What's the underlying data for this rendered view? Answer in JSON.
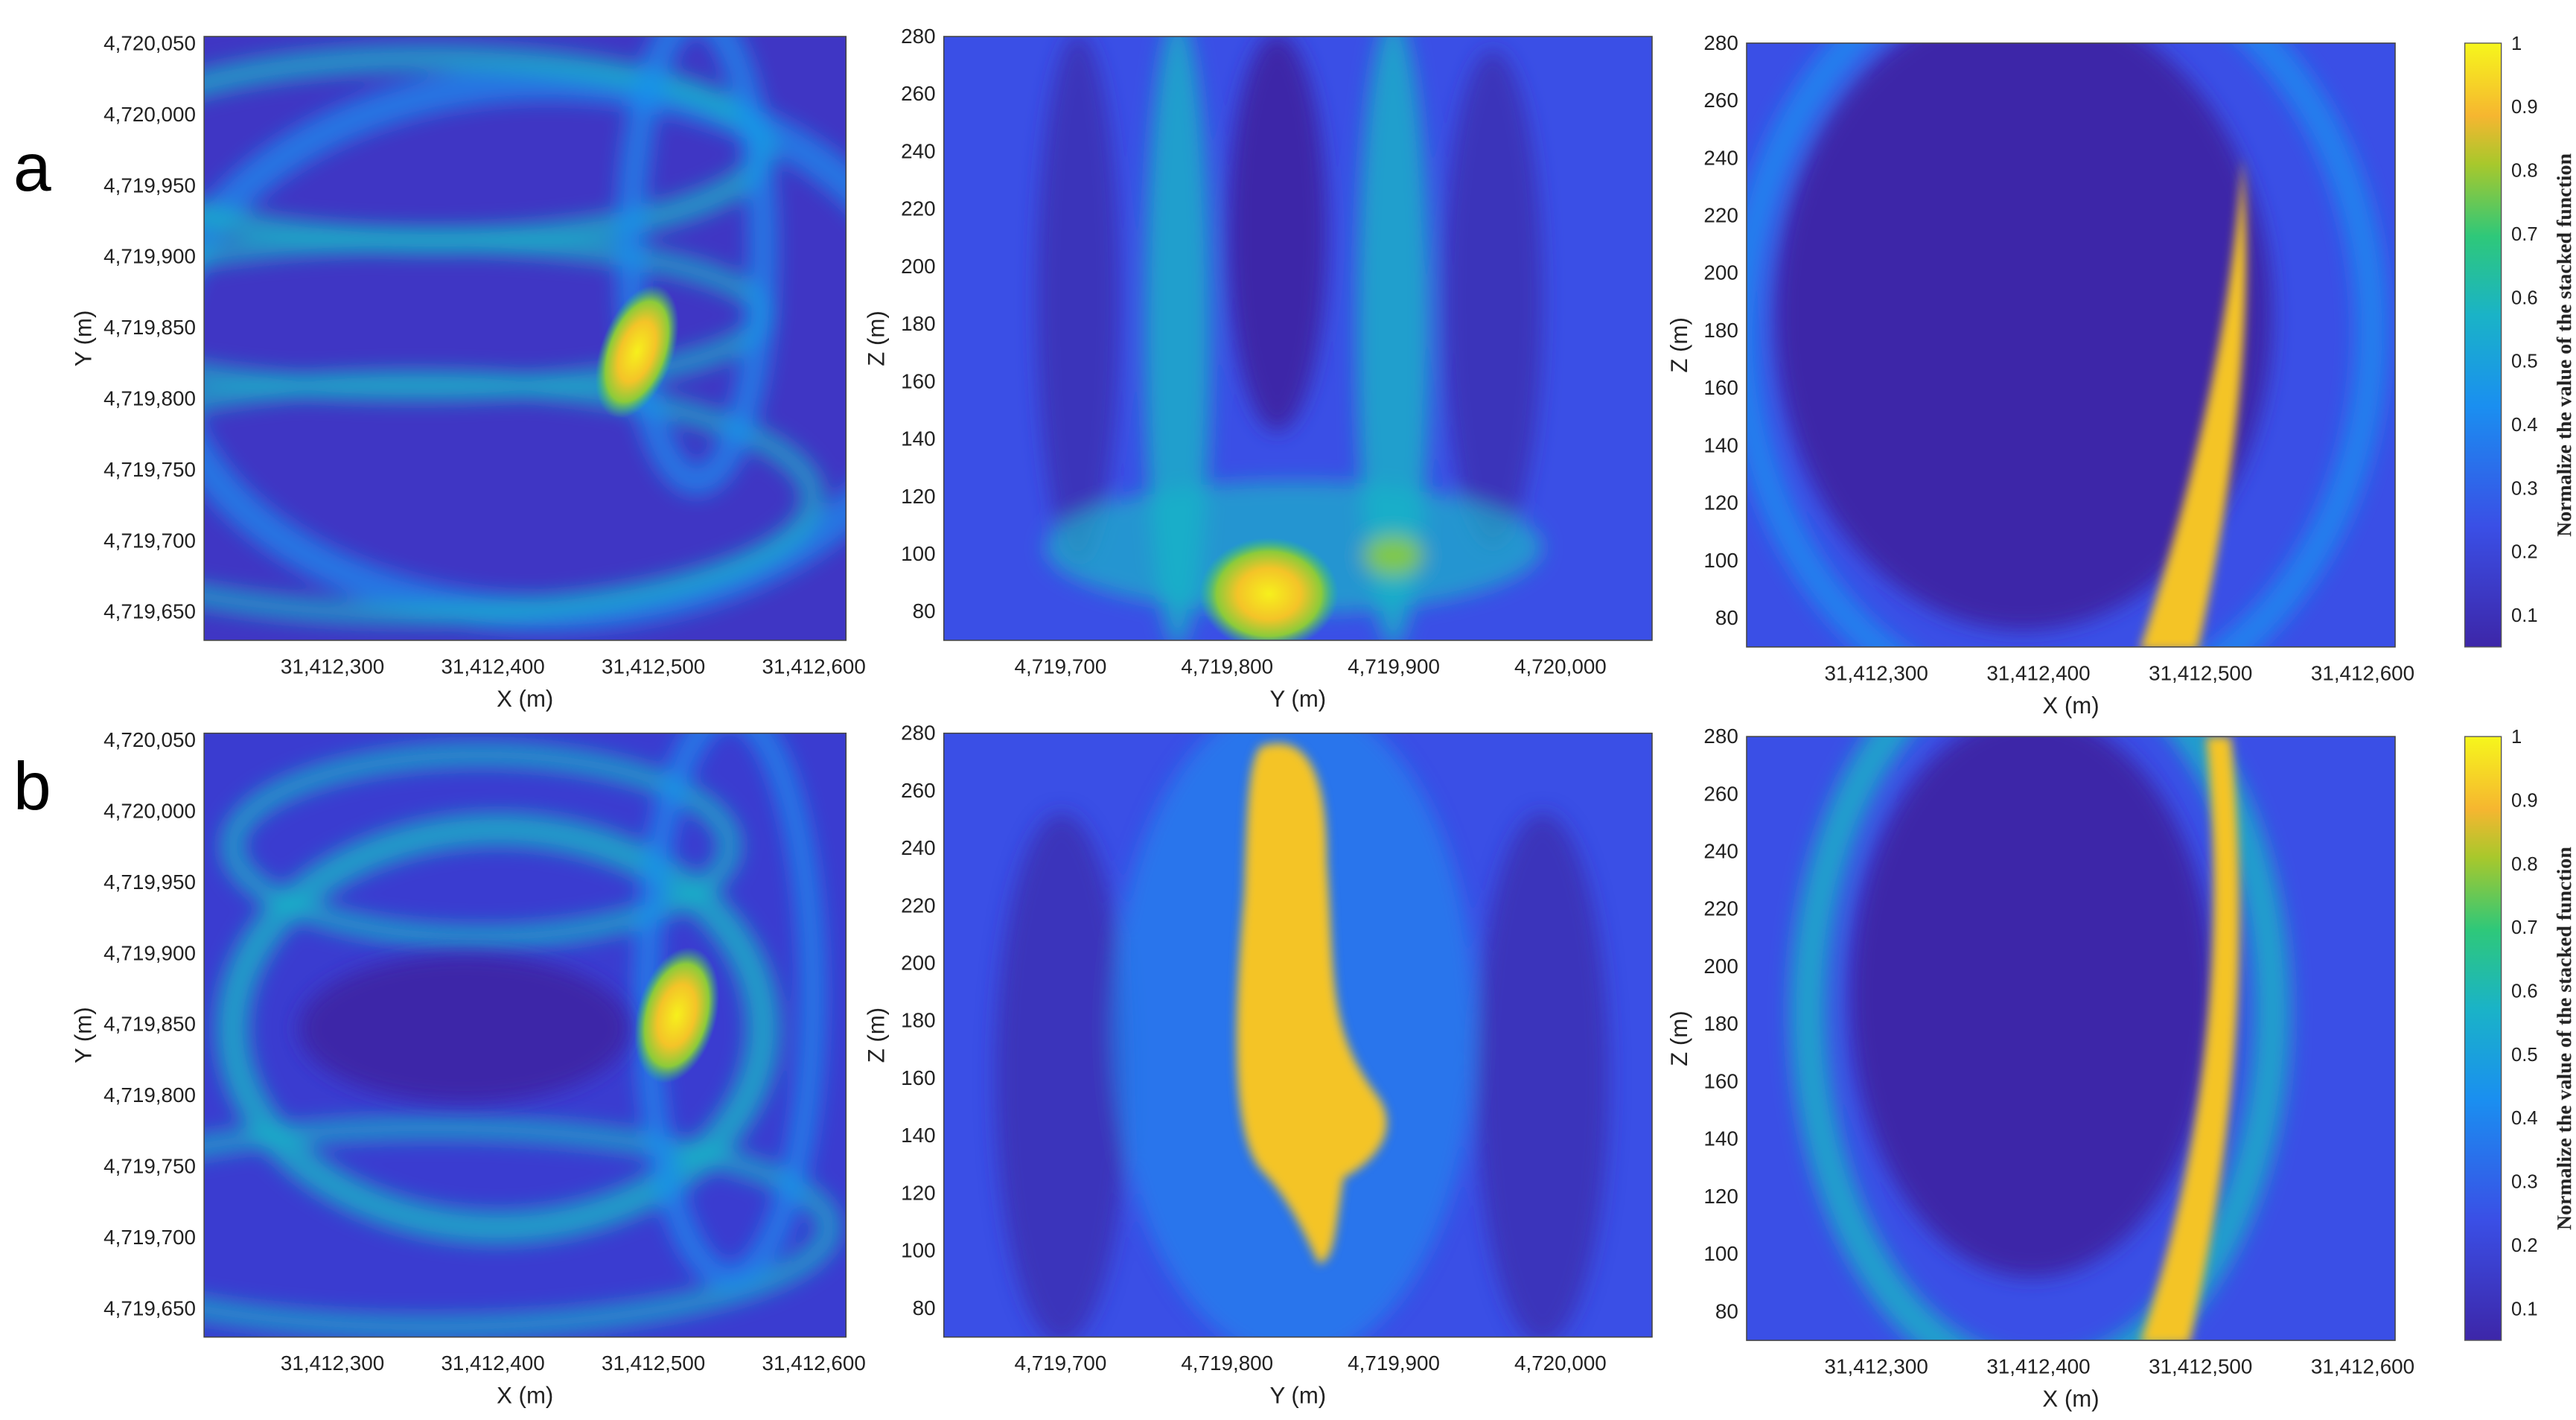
{
  "figure": {
    "row_labels": [
      "a",
      "b"
    ],
    "colorbar": {
      "label": "Normalize the value of the stacked function",
      "ticks": [
        "0.1",
        "0.2",
        "0.3",
        "0.4",
        "0.5",
        "0.6",
        "0.7",
        "0.8",
        "0.9",
        "1"
      ],
      "range": [
        0.05,
        1
      ]
    },
    "colors": {
      "low": "#3d26a8",
      "mid": "#1ea8c9",
      "green": "#2ec87a",
      "high": "#f6e91c",
      "orange": "#f6b630"
    }
  },
  "chart_data": [
    {
      "type": "heatmap",
      "panel": "a-xy",
      "xlabel": "X (m)",
      "ylabel": "Y (m)",
      "xticks": [
        "31,412,300",
        "31,412,400",
        "31,412,500",
        "31,412,600"
      ],
      "xtick_values": [
        31412300,
        31412400,
        31412500,
        31412600
      ],
      "xlim": [
        31412220,
        31412620
      ],
      "yticks": [
        "4,719,650",
        "4,719,700",
        "4,719,750",
        "4,719,800",
        "4,719,850",
        "4,719,900",
        "4,719,950",
        "4,720,000",
        "4,720,050"
      ],
      "ytick_values": [
        4719650,
        4719700,
        4719750,
        4719800,
        4719850,
        4719900,
        4719950,
        4720000,
        4720050
      ],
      "ylim": [
        4719630,
        4720055
      ],
      "peak": {
        "x": 31412505,
        "y": 4719835,
        "value": 1.0
      }
    },
    {
      "type": "heatmap",
      "panel": "a-yz",
      "xlabel": "Y (m)",
      "ylabel": "Z (m)",
      "xticks": [
        "4,719,700",
        "4,719,800",
        "4,719,900",
        "4,720,000"
      ],
      "xtick_values": [
        4719700,
        4719800,
        4719900,
        4720000
      ],
      "xlim": [
        4719630,
        4720055
      ],
      "yticks": [
        "80",
        "100",
        "120",
        "140",
        "160",
        "180",
        "200",
        "220",
        "240",
        "260",
        "280"
      ],
      "ytick_values": [
        80,
        100,
        120,
        140,
        160,
        180,
        200,
        220,
        240,
        260,
        280
      ],
      "ylim": [
        70,
        280
      ],
      "peak": {
        "x": 4719815,
        "y": 85,
        "value": 1.0
      }
    },
    {
      "type": "heatmap",
      "panel": "a-xz",
      "xlabel": "X (m)",
      "ylabel": "Z (m)",
      "xticks": [
        "31,412,300",
        "31,412,400",
        "31,412,500",
        "31,412,600"
      ],
      "xtick_values": [
        31412300,
        31412400,
        31412500,
        31412600
      ],
      "xlim": [
        31412220,
        31412620
      ],
      "yticks": [
        "80",
        "100",
        "120",
        "140",
        "160",
        "180",
        "200",
        "220",
        "240",
        "260",
        "280"
      ],
      "ytick_values": [
        80,
        100,
        120,
        140,
        160,
        180,
        200,
        220,
        240,
        260,
        280
      ],
      "ylim": [
        70,
        280
      ],
      "peak": {
        "x": 31412505,
        "y": 100,
        "value": 1.0
      }
    },
    {
      "type": "heatmap",
      "panel": "b-xy",
      "xlabel": "X (m)",
      "ylabel": "Y (m)",
      "xticks": [
        "31,412,300",
        "31,412,400",
        "31,412,500",
        "31,412,600"
      ],
      "xtick_values": [
        31412300,
        31412400,
        31412500,
        31412600
      ],
      "xlim": [
        31412220,
        31412620
      ],
      "yticks": [
        "4,719,650",
        "4,719,700",
        "4,719,750",
        "4,719,800",
        "4,719,850",
        "4,719,900",
        "4,719,950",
        "4,720,000",
        "4,720,050"
      ],
      "ytick_values": [
        4719650,
        4719700,
        4719750,
        4719800,
        4719850,
        4719900,
        4719950,
        4720000,
        4720050
      ],
      "ylim": [
        4719630,
        4720055
      ],
      "peak": {
        "x": 31412510,
        "y": 4719850,
        "value": 1.0
      }
    },
    {
      "type": "heatmap",
      "panel": "b-yz",
      "xlabel": "Y (m)",
      "ylabel": "Z (m)",
      "xticks": [
        "4,719,700",
        "4,719,800",
        "4,719,900",
        "4,720,000"
      ],
      "xtick_values": [
        4719700,
        4719800,
        4719900,
        4720000
      ],
      "xlim": [
        4719630,
        4720055
      ],
      "yticks": [
        "80",
        "100",
        "120",
        "140",
        "160",
        "180",
        "200",
        "220",
        "240",
        "260",
        "280"
      ],
      "ytick_values": [
        80,
        100,
        120,
        140,
        160,
        180,
        200,
        220,
        240,
        260,
        280
      ],
      "ylim": [
        70,
        280
      ],
      "peak": {
        "x": 4719825,
        "y": 150,
        "value": 1.0
      }
    },
    {
      "type": "heatmap",
      "panel": "b-xz",
      "xlabel": "X (m)",
      "ylabel": "Z (m)",
      "xticks": [
        "31,412,300",
        "31,412,400",
        "31,412,500",
        "31,412,600"
      ],
      "xtick_values": [
        31412300,
        31412400,
        31412500,
        31412600
      ],
      "xlim": [
        31412220,
        31412620
      ],
      "yticks": [
        "80",
        "100",
        "120",
        "140",
        "160",
        "180",
        "200",
        "220",
        "240",
        "260",
        "280"
      ],
      "ytick_values": [
        80,
        100,
        120,
        140,
        160,
        180,
        200,
        220,
        240,
        260,
        280
      ],
      "ylim": [
        70,
        280
      ],
      "peak": {
        "x": 31412505,
        "y": 160,
        "value": 1.0
      }
    }
  ]
}
